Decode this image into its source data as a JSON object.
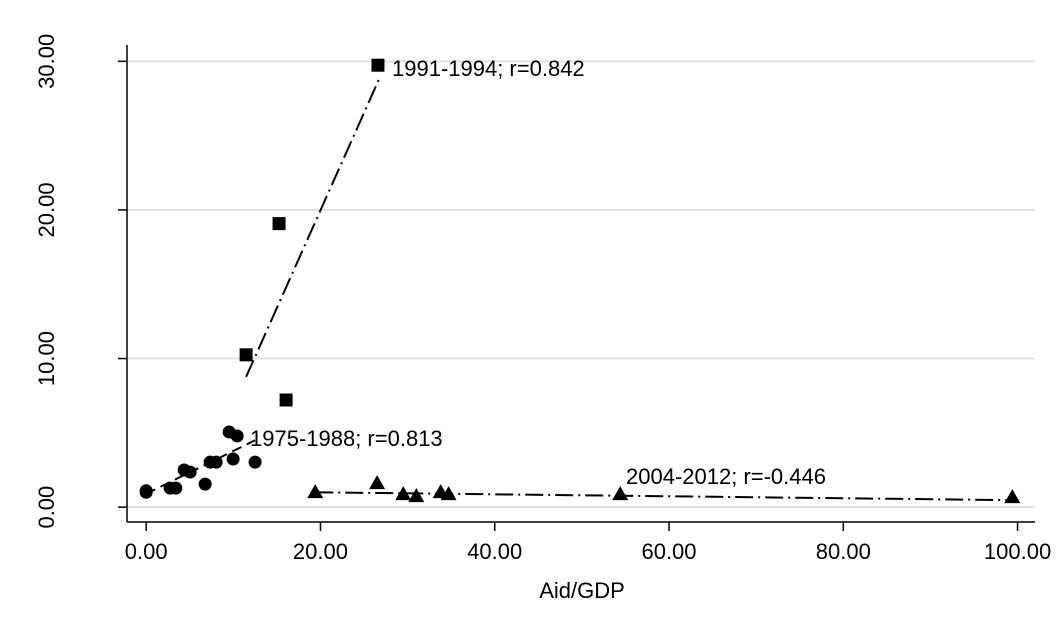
{
  "chart_data": {
    "type": "scatter",
    "x_label": "Aid/GDP",
    "xlim": [
      -2.2,
      102
    ],
    "ylim": [
      -1,
      31.1
    ],
    "xticks": [
      {
        "value": 0,
        "label": "0.00"
      },
      {
        "value": 20,
        "label": "20.00"
      },
      {
        "value": 40,
        "label": "40.00"
      },
      {
        "value": 60,
        "label": "60.00"
      },
      {
        "value": 80,
        "label": "80.00"
      },
      {
        "value": 100,
        "label": "100.00"
      }
    ],
    "yticks": [
      {
        "value": 0,
        "label": "0.00"
      },
      {
        "value": 10,
        "label": "10.00"
      },
      {
        "value": 20,
        "label": "20.00"
      },
      {
        "value": 30,
        "label": "30.00"
      }
    ],
    "grid": true,
    "series": [
      {
        "name": "1975-1988; r=0.813",
        "marker": "circle",
        "color": "#000000",
        "dash": "dashed",
        "x": [
          0,
          0,
          2.75,
          3.4,
          4.36,
          5.05,
          6.77,
          7.34,
          8.03,
          9.52,
          10.44,
          9.98,
          12.5
        ],
        "values": [
          1.1,
          1.0,
          1.28,
          1.28,
          2.5,
          2.36,
          1.55,
          3.03,
          3.03,
          5.06,
          4.79,
          3.24,
          3.03
        ],
        "fit": {
          "x": [
            0,
            12.5
          ],
          "y": [
            0.9,
            4.5
          ]
        }
      },
      {
        "name": "1991-1994; r=0.842",
        "marker": "square",
        "color": "#000000",
        "dash": "dashdot",
        "x": [
          11.47,
          15.25,
          16.06,
          26.6
        ],
        "values": [
          10.25,
          19.08,
          7.21,
          29.74
        ],
        "fit": {
          "x": [
            11.47,
            26.8
          ],
          "y": [
            8.77,
            28.9
          ]
        }
      },
      {
        "name": "2004-2012; r=-0.446",
        "marker": "triangle",
        "color": "#000000",
        "dash": "dashdot",
        "x": [
          19.4,
          26.5,
          29.5,
          31.0,
          33.8,
          34.7,
          54.4,
          99.4
        ],
        "values": [
          1.01,
          1.62,
          0.88,
          0.74,
          1.01,
          0.88,
          0.88,
          0.67
        ],
        "fit": {
          "x": [
            19.4,
            99.4
          ],
          "y": [
            1.0,
            0.47
          ]
        }
      }
    ]
  }
}
